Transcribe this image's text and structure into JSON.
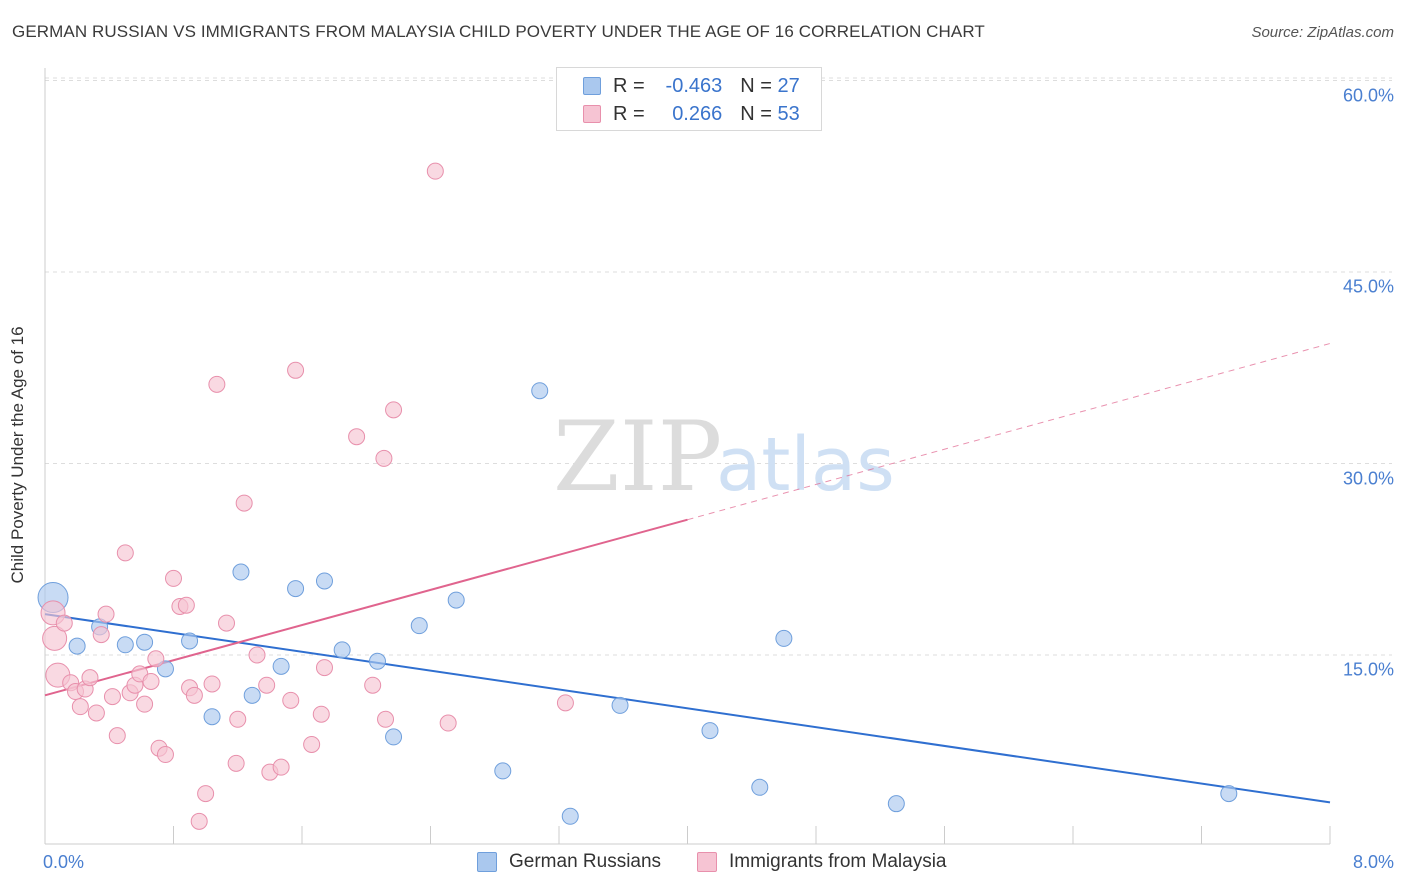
{
  "title": "GERMAN RUSSIAN VS IMMIGRANTS FROM MALAYSIA CHILD POVERTY UNDER THE AGE OF 16 CORRELATION CHART",
  "source": "Source: ZipAtlas.com",
  "watermark": {
    "zip": "ZIP",
    "atlas": "atlas"
  },
  "legend": {
    "series1": {
      "r_label": "R =",
      "r_value": "-0.463",
      "n_label": "N =",
      "n_value": "27"
    },
    "series2": {
      "r_label": "R =",
      "r_value": "0.266",
      "n_label": "N =",
      "n_value": "53"
    }
  },
  "colors": {
    "blue_fill": "#aac8ee",
    "blue_stroke": "#6f9fdc",
    "blue_line": "#2f6fd0",
    "pink_fill": "#f6c4d3",
    "pink_stroke": "#e890ac",
    "pink_line": "#e0648e",
    "tick_text": "#4a7fd0"
  },
  "chart_data": {
    "type": "scatter",
    "title": "GERMAN RUSSIAN VS IMMIGRANTS FROM MALAYSIA CHILD POVERTY UNDER THE AGE OF 16 CORRELATION CHART",
    "xlabel": "",
    "ylabel": "Child Poverty Under the Age of 16",
    "xlim": [
      0,
      8
    ],
    "ylim": [
      0,
      60
    ],
    "x_tick_labels": [
      "0.0%",
      "8.0%"
    ],
    "y_ticks": [
      15,
      30,
      45,
      60
    ],
    "y_tick_labels": [
      "15.0%",
      "30.0%",
      "45.0%",
      "60.0%"
    ],
    "grid": true,
    "legend_position": "top-center",
    "series": [
      {
        "name": "German Russians",
        "color": "#aac8ee",
        "points": [
          [
            0.05,
            19.5
          ],
          [
            0.2,
            15.7
          ],
          [
            0.34,
            17.2
          ],
          [
            0.5,
            15.8
          ],
          [
            0.62,
            16.0
          ],
          [
            0.75,
            13.9
          ],
          [
            0.9,
            16.1
          ],
          [
            1.04,
            10.1
          ],
          [
            1.22,
            21.5
          ],
          [
            1.29,
            11.8
          ],
          [
            1.47,
            14.1
          ],
          [
            1.56,
            20.2
          ],
          [
            1.74,
            20.8
          ],
          [
            1.85,
            15.4
          ],
          [
            2.07,
            14.5
          ],
          [
            2.17,
            8.5
          ],
          [
            2.33,
            17.3
          ],
          [
            2.56,
            19.3
          ],
          [
            2.85,
            5.8
          ],
          [
            3.08,
            35.7
          ],
          [
            3.27,
            2.2
          ],
          [
            3.58,
            11.0
          ],
          [
            4.14,
            9.0
          ],
          [
            4.45,
            4.5
          ],
          [
            4.6,
            16.3
          ],
          [
            5.3,
            3.2
          ],
          [
            7.37,
            4.0
          ]
        ],
        "trend": {
          "x": [
            0,
            8
          ],
          "y": [
            18.2,
            3.3
          ]
        }
      },
      {
        "name": "Immigrants from Malaysia",
        "color": "#f6c4d3",
        "points": [
          [
            0.05,
            18.3
          ],
          [
            0.06,
            16.3
          ],
          [
            0.08,
            13.4
          ],
          [
            0.12,
            17.5
          ],
          [
            0.16,
            12.8
          ],
          [
            0.19,
            12.1
          ],
          [
            0.22,
            10.9
          ],
          [
            0.25,
            12.3
          ],
          [
            0.28,
            13.2
          ],
          [
            0.32,
            10.4
          ],
          [
            0.35,
            16.6
          ],
          [
            0.38,
            18.2
          ],
          [
            0.42,
            11.7
          ],
          [
            0.45,
            8.6
          ],
          [
            0.5,
            23.0
          ],
          [
            0.53,
            12.0
          ],
          [
            0.56,
            12.6
          ],
          [
            0.59,
            13.5
          ],
          [
            0.62,
            11.1
          ],
          [
            0.66,
            12.9
          ],
          [
            0.69,
            14.7
          ],
          [
            0.71,
            7.6
          ],
          [
            0.75,
            7.1
          ],
          [
            0.8,
            21.0
          ],
          [
            0.84,
            18.8
          ],
          [
            0.88,
            18.9
          ],
          [
            0.9,
            12.4
          ],
          [
            0.93,
            11.8
          ],
          [
            0.96,
            1.8
          ],
          [
            1.0,
            4.0
          ],
          [
            1.04,
            12.7
          ],
          [
            1.07,
            36.2
          ],
          [
            1.13,
            17.5
          ],
          [
            1.19,
            6.4
          ],
          [
            1.2,
            9.9
          ],
          [
            1.24,
            26.9
          ],
          [
            1.32,
            15.0
          ],
          [
            1.38,
            12.6
          ],
          [
            1.4,
            5.7
          ],
          [
            1.47,
            6.1
          ],
          [
            1.53,
            11.4
          ],
          [
            1.56,
            37.3
          ],
          [
            1.66,
            7.9
          ],
          [
            1.72,
            10.3
          ],
          [
            1.74,
            14.0
          ],
          [
            1.94,
            32.1
          ],
          [
            2.04,
            12.6
          ],
          [
            2.11,
            30.4
          ],
          [
            2.12,
            9.9
          ],
          [
            2.17,
            34.2
          ],
          [
            2.51,
            9.6
          ],
          [
            2.43,
            52.9
          ],
          [
            3.24,
            11.2
          ]
        ],
        "trend": {
          "x": [
            0,
            4
          ],
          "y": [
            11.8,
            25.6
          ]
        },
        "trend_extrapolated": {
          "x": [
            4,
            8
          ],
          "y": [
            25.6,
            39.4
          ]
        }
      }
    ]
  }
}
